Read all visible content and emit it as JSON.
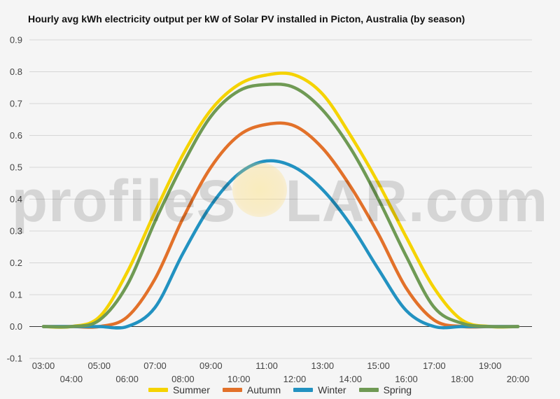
{
  "title": "Hourly avg kWh electricity output per kW of Solar PV installed in Picton, Australia (by season)",
  "watermark": {
    "text_left": "profileS",
    "text_right": "LAR.com"
  },
  "chart_data": {
    "type": "line",
    "title": "Hourly avg kWh electricity output per kW of Solar PV installed in Picton, Australia (by season)",
    "xlabel": "",
    "ylabel": "",
    "ylim": [
      -0.1,
      0.9
    ],
    "yticks": [
      "-0.1",
      "0.0",
      "0.1",
      "0.2",
      "0.3",
      "0.4",
      "0.5",
      "0.6",
      "0.7",
      "0.8",
      "0.9"
    ],
    "x": [
      3,
      4,
      5,
      6,
      7,
      8,
      9,
      10,
      11,
      12,
      13,
      14,
      15,
      16,
      17,
      18,
      19,
      20
    ],
    "xticks": [
      "03:00",
      "04:00",
      "05:00",
      "06:00",
      "07:00",
      "08:00",
      "09:00",
      "10:00",
      "11:00",
      "12:00",
      "13:00",
      "14:00",
      "15:00",
      "16:00",
      "17:00",
      "18:00",
      "19:00",
      "20:00"
    ],
    "grid": true,
    "legend_position": "bottom",
    "series": [
      {
        "name": "Summer",
        "color": "#f5d300",
        "values": [
          0.0,
          0.0,
          0.03,
          0.17,
          0.36,
          0.54,
          0.68,
          0.76,
          0.79,
          0.79,
          0.73,
          0.6,
          0.45,
          0.28,
          0.12,
          0.02,
          0.0,
          0.0
        ]
      },
      {
        "name": "Autumn",
        "color": "#e2712a",
        "values": [
          0.0,
          0.0,
          0.0,
          0.03,
          0.15,
          0.34,
          0.5,
          0.6,
          0.635,
          0.63,
          0.56,
          0.44,
          0.29,
          0.12,
          0.02,
          0.0,
          0.0,
          0.0
        ]
      },
      {
        "name": "Winter",
        "color": "#2292c1",
        "values": [
          0.0,
          0.0,
          0.0,
          0.0,
          0.06,
          0.23,
          0.38,
          0.48,
          0.52,
          0.5,
          0.43,
          0.32,
          0.18,
          0.05,
          0.0,
          0.0,
          0.0,
          0.0
        ]
      },
      {
        "name": "Spring",
        "color": "#6f9a54",
        "values": [
          0.0,
          0.0,
          0.02,
          0.13,
          0.33,
          0.51,
          0.66,
          0.74,
          0.76,
          0.75,
          0.68,
          0.56,
          0.4,
          0.22,
          0.06,
          0.01,
          0.0,
          0.0
        ]
      }
    ]
  }
}
